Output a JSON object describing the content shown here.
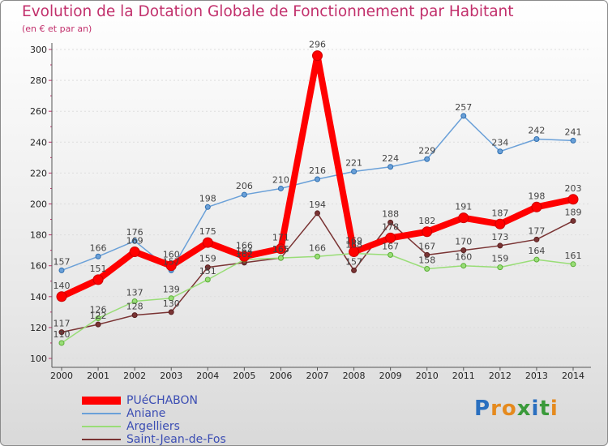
{
  "colors": {
    "title": "#c2306c",
    "axis_text": "#222222",
    "value_text": "#444444",
    "grid": "#dddddd",
    "axis": "#555555",
    "legend_text": "#3b4db3"
  },
  "logo": {
    "text": "Proxiti",
    "letters": [
      "P",
      "r",
      "o",
      "x",
      "i",
      "t",
      "i"
    ]
  },
  "chart_data": {
    "type": "line",
    "title": "Evolution de la Dotation Globale de Fonctionnement par Habitant",
    "subtitle": "(en € et par an)",
    "xlabel": "",
    "ylabel": "",
    "x": [
      2000,
      2001,
      2002,
      2003,
      2004,
      2005,
      2006,
      2007,
      2008,
      2009,
      2010,
      2011,
      2012,
      2013,
      2014
    ],
    "ylim": [
      100,
      300
    ],
    "yticks": [
      100,
      120,
      140,
      160,
      180,
      200,
      220,
      240,
      260,
      280,
      300
    ],
    "grid": true,
    "legend_position": "bottom-left",
    "series": [
      {
        "name": "PUéCHABON",
        "color": "#ff0000",
        "marker_edge": "#cc0000",
        "values": [
          140,
          151,
          169,
          160,
          175,
          166,
          171,
          296,
          169,
          178,
          182,
          191,
          187,
          198,
          203
        ],
        "labels": [
          "140",
          "151",
          "169",
          "160",
          "175",
          "166",
          "171",
          "296",
          "169",
          "178",
          "182",
          "191",
          "187",
          "198",
          "203"
        ]
      },
      {
        "name": "Aniane",
        "color": "#6aa0d8",
        "marker_edge": "#2f6fb0",
        "values": [
          157,
          166,
          176,
          157,
          198,
          206,
          210,
          216,
          221,
          224,
          229,
          257,
          234,
          242,
          241
        ],
        "labels": [
          "157",
          "166",
          "176",
          "157",
          "198",
          "206",
          "210",
          "216",
          "221",
          "224",
          "229",
          "257",
          "234",
          "242",
          "241"
        ]
      },
      {
        "name": "Argelliers",
        "color": "#99dd77",
        "marker_edge": "#5aae36",
        "values": [
          110,
          126,
          137,
          139,
          151,
          164,
          165,
          166,
          168,
          167,
          158,
          160,
          159,
          164,
          161
        ],
        "labels": [
          "110",
          "126",
          "137",
          "139",
          "151",
          "164",
          "165",
          "166",
          "168",
          "167",
          "158",
          "160",
          "159",
          "164",
          "161"
        ]
      },
      {
        "name": "Saint-Jean-de-Fos",
        "color": "#7a3434",
        "marker_edge": "#5a2020",
        "values": [
          117,
          122,
          128,
          130,
          159,
          162,
          165,
          194,
          157,
          188,
          167,
          170,
          173,
          177,
          189
        ],
        "labels": [
          "117",
          "122",
          "128",
          "130",
          "159",
          "162",
          "165",
          "194",
          "157",
          "188",
          "167",
          "170",
          "173",
          "177",
          "189"
        ]
      }
    ]
  }
}
